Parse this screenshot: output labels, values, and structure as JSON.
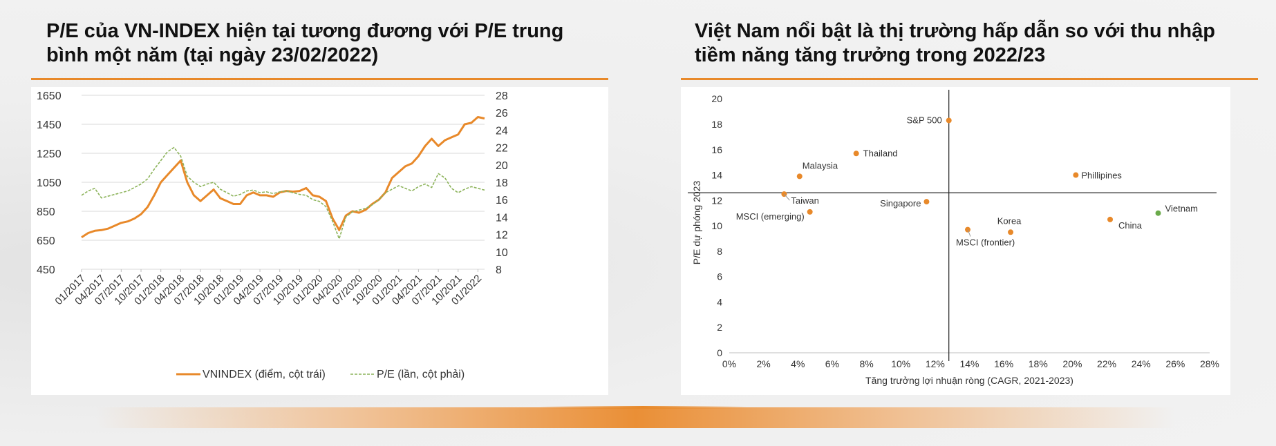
{
  "left_panel": {
    "title_line1": "P/E của VN-INDEX hiện tại tương đương với P/E trung",
    "title_line2": "bình một năm (tại ngày 23/02/2022)"
  },
  "right_panel": {
    "title_line1": "Việt Nam nổi bật là thị trường hấp dẫn so với thu nhập",
    "title_line2": "tiềm năng tăng trưởng trong 2022/23"
  },
  "colors": {
    "accent": "#e8892a",
    "vnindex_line": "#e8892a",
    "pe_line": "#8cb35a",
    "scatter_orange": "#e8892a",
    "scatter_green": "#6aaa4a"
  },
  "chart_data": [
    {
      "type": "line",
      "x_tick_labels": [
        "01/2017",
        "04/2017",
        "07/2017",
        "10/2017",
        "01/2018",
        "04/2018",
        "07/2018",
        "10/2018",
        "01/2019",
        "04/2019",
        "07/2019",
        "10/2019",
        "01/2020",
        "04/2020",
        "07/2020",
        "10/2020",
        "01/2021",
        "04/2021",
        "07/2021",
        "10/2021",
        "01/2022"
      ],
      "y_left_ticks": [
        "1650",
        "1450",
        "1250",
        "1050",
        "850",
        "650",
        "450"
      ],
      "y_right_ticks": [
        "28",
        "26",
        "24",
        "22",
        "20",
        "18",
        "16",
        "14",
        "12",
        "10",
        "8"
      ],
      "ylim_left": [
        450,
        1650
      ],
      "ylim_right": [
        8,
        28
      ],
      "grid": true,
      "legend_position": "bottom",
      "series": [
        {
          "name": "VNINDEX (điểm, cột trái)",
          "axis": "left",
          "style": "solid",
          "x": [
            "01/2017",
            "02/2017",
            "03/2017",
            "04/2017",
            "05/2017",
            "06/2017",
            "07/2017",
            "08/2017",
            "09/2017",
            "10/2017",
            "11/2017",
            "12/2017",
            "01/2018",
            "02/2018",
            "03/2018",
            "04/2018",
            "05/2018",
            "06/2018",
            "07/2018",
            "08/2018",
            "09/2018",
            "10/2018",
            "11/2018",
            "12/2018",
            "01/2019",
            "02/2019",
            "03/2019",
            "04/2019",
            "05/2019",
            "06/2019",
            "07/2019",
            "08/2019",
            "09/2019",
            "10/2019",
            "11/2019",
            "12/2019",
            "01/2020",
            "02/2020",
            "03/2020",
            "04/2020",
            "05/2020",
            "06/2020",
            "07/2020",
            "08/2020",
            "09/2020",
            "10/2020",
            "11/2020",
            "12/2020",
            "01/2021",
            "02/2021",
            "03/2021",
            "04/2021",
            "05/2021",
            "06/2021",
            "07/2021",
            "08/2021",
            "09/2021",
            "10/2021",
            "11/2021",
            "12/2021",
            "01/2022",
            "02/2022"
          ],
          "values": [
            670,
            700,
            715,
            720,
            730,
            750,
            770,
            780,
            800,
            830,
            880,
            960,
            1050,
            1100,
            1150,
            1200,
            1050,
            960,
            920,
            960,
            1000,
            940,
            920,
            900,
            900,
            960,
            980,
            960,
            960,
            950,
            980,
            990,
            985,
            990,
            1010,
            960,
            950,
            920,
            800,
            720,
            820,
            850,
            840,
            860,
            900,
            930,
            980,
            1080,
            1120,
            1160,
            1180,
            1230,
            1300,
            1350,
            1300,
            1340,
            1360,
            1380,
            1450,
            1460,
            1500,
            1490
          ]
        },
        {
          "name": "P/E (lần, cột phải)",
          "axis": "right",
          "style": "dashed",
          "x": [
            "01/2017",
            "02/2017",
            "03/2017",
            "04/2017",
            "05/2017",
            "06/2017",
            "07/2017",
            "08/2017",
            "09/2017",
            "10/2017",
            "11/2017",
            "12/2017",
            "01/2018",
            "02/2018",
            "03/2018",
            "04/2018",
            "05/2018",
            "06/2018",
            "07/2018",
            "08/2018",
            "09/2018",
            "10/2018",
            "11/2018",
            "12/2018",
            "01/2019",
            "02/2019",
            "03/2019",
            "04/2019",
            "05/2019",
            "06/2019",
            "07/2019",
            "08/2019",
            "09/2019",
            "10/2019",
            "11/2019",
            "12/2019",
            "01/2020",
            "02/2020",
            "03/2020",
            "04/2020",
            "05/2020",
            "06/2020",
            "07/2020",
            "08/2020",
            "09/2020",
            "10/2020",
            "11/2020",
            "12/2020",
            "01/2021",
            "02/2021",
            "03/2021",
            "04/2021",
            "05/2021",
            "06/2021",
            "07/2021",
            "08/2021",
            "09/2021",
            "10/2021",
            "11/2021",
            "12/2021",
            "01/2022",
            "02/2022"
          ],
          "values": [
            16.5,
            17.0,
            17.3,
            16.2,
            16.4,
            16.6,
            16.8,
            17.0,
            17.4,
            17.8,
            18.4,
            19.5,
            20.5,
            21.5,
            22.0,
            21.0,
            18.7,
            18.0,
            17.5,
            17.8,
            18.0,
            17.2,
            16.8,
            16.4,
            16.6,
            17.0,
            17.1,
            16.8,
            16.9,
            16.7,
            16.9,
            17.0,
            16.8,
            16.6,
            16.5,
            16.0,
            15.8,
            15.2,
            13.5,
            11.5,
            14.0,
            14.6,
            14.8,
            15.0,
            15.4,
            16.0,
            16.8,
            17.2,
            17.6,
            17.3,
            17.0,
            17.5,
            17.8,
            17.4,
            19.0,
            18.5,
            17.3,
            16.8,
            17.2,
            17.5,
            17.3,
            17.1
          ]
        }
      ]
    },
    {
      "type": "scatter",
      "xlabel": "Tăng trưởng lợi nhuận ròng (CAGR, 2021-2023)",
      "ylabel": "P/E dự phóng 2023",
      "x_ticks": [
        "0%",
        "2%",
        "4%",
        "6%",
        "8%",
        "10%",
        "12%",
        "14%",
        "16%",
        "18%",
        "20%",
        "22%",
        "24%",
        "26%",
        "28%"
      ],
      "y_ticks": [
        "0",
        "2",
        "4",
        "6",
        "8",
        "10",
        "12",
        "14",
        "16",
        "18",
        "20"
      ],
      "xlim": [
        0,
        28
      ],
      "ylim": [
        0,
        20.5
      ],
      "reference_lines": {
        "vertical_x": 12.8,
        "horizontal_y": 12.6
      },
      "points": [
        {
          "label": "S&P 500",
          "x": 12.8,
          "y": 18.3,
          "color": "orange"
        },
        {
          "label": "Thailand",
          "x": 7.4,
          "y": 15.7,
          "color": "orange"
        },
        {
          "label": "Malaysia",
          "x": 4.1,
          "y": 13.9,
          "color": "orange"
        },
        {
          "label": "Phillipines",
          "x": 20.2,
          "y": 14.0,
          "color": "orange"
        },
        {
          "label": "Taiwan",
          "x": 3.2,
          "y": 12.5,
          "color": "orange"
        },
        {
          "label": "Singapore",
          "x": 11.5,
          "y": 11.9,
          "color": "orange"
        },
        {
          "label": "MSCI (emerging)",
          "x": 4.7,
          "y": 11.1,
          "color": "orange"
        },
        {
          "label": "Vietnam",
          "x": 25.0,
          "y": 11.0,
          "color": "green"
        },
        {
          "label": "China",
          "x": 22.2,
          "y": 10.5,
          "color": "orange"
        },
        {
          "label": "Korea",
          "x": 16.4,
          "y": 9.5,
          "color": "orange"
        },
        {
          "label": "MSCI (frontier)",
          "x": 13.9,
          "y": 9.7,
          "color": "orange"
        }
      ]
    }
  ]
}
